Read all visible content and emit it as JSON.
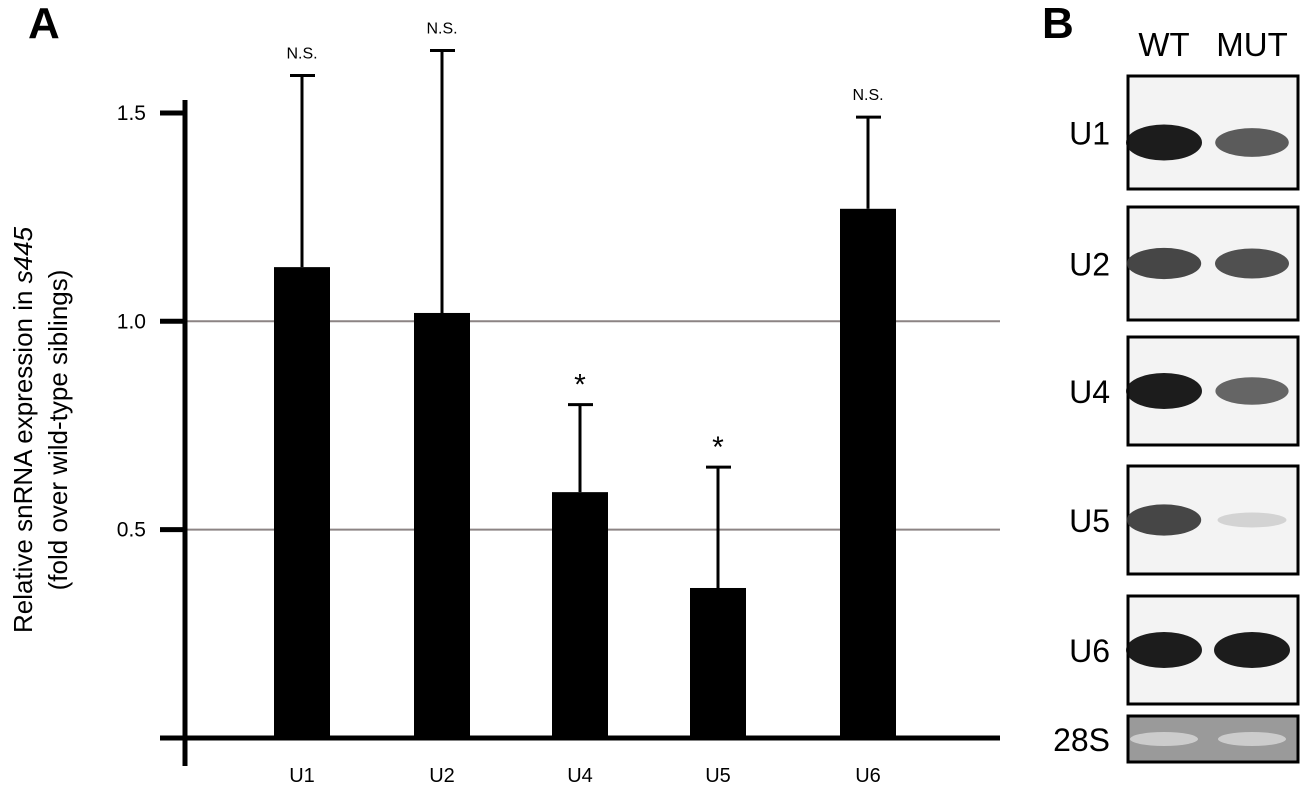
{
  "panel_a": {
    "letter": "A",
    "ylabel_line1_pre": "Relative snRNA expression in ",
    "ylabel_line1_italic": "s445",
    "ylabel_line2": "(fold over wild-type siblings)"
  },
  "panel_b": {
    "letter": "B",
    "lanes": [
      "WT",
      "MUT"
    ],
    "blots": [
      {
        "label": "U1",
        "wt": 1.0,
        "mut": 0.7
      },
      {
        "label": "U2",
        "wt": 0.8,
        "mut": 0.75
      },
      {
        "label": "U4",
        "wt": 1.0,
        "mut": 0.65
      },
      {
        "label": "U5",
        "wt": 0.8,
        "mut": 0.12
      },
      {
        "label": "U6",
        "wt": 1.0,
        "mut": 1.0
      },
      {
        "label": "28S",
        "wt": 0.25,
        "mut": 0.25
      }
    ]
  },
  "chart_data": {
    "type": "bar",
    "categories": [
      "U1",
      "U2",
      "U4",
      "U5",
      "U6"
    ],
    "values": [
      1.13,
      1.02,
      0.59,
      0.36,
      1.27
    ],
    "error_upper": [
      1.59,
      1.65,
      0.8,
      0.65,
      1.49
    ],
    "annotations": [
      "N.S.",
      "N.S.",
      "*",
      "*",
      "N.S."
    ],
    "yticks": [
      0.5,
      1.0,
      1.5
    ],
    "ytick_labels": [
      "0.5",
      "1.0",
      "1.5"
    ],
    "ylim": [
      0,
      1.5
    ],
    "reference_lines": [
      0.5,
      1.0
    ],
    "grid": false,
    "legend": "none",
    "bar_color": "#000000",
    "reference_line_color": "#8c8484"
  }
}
